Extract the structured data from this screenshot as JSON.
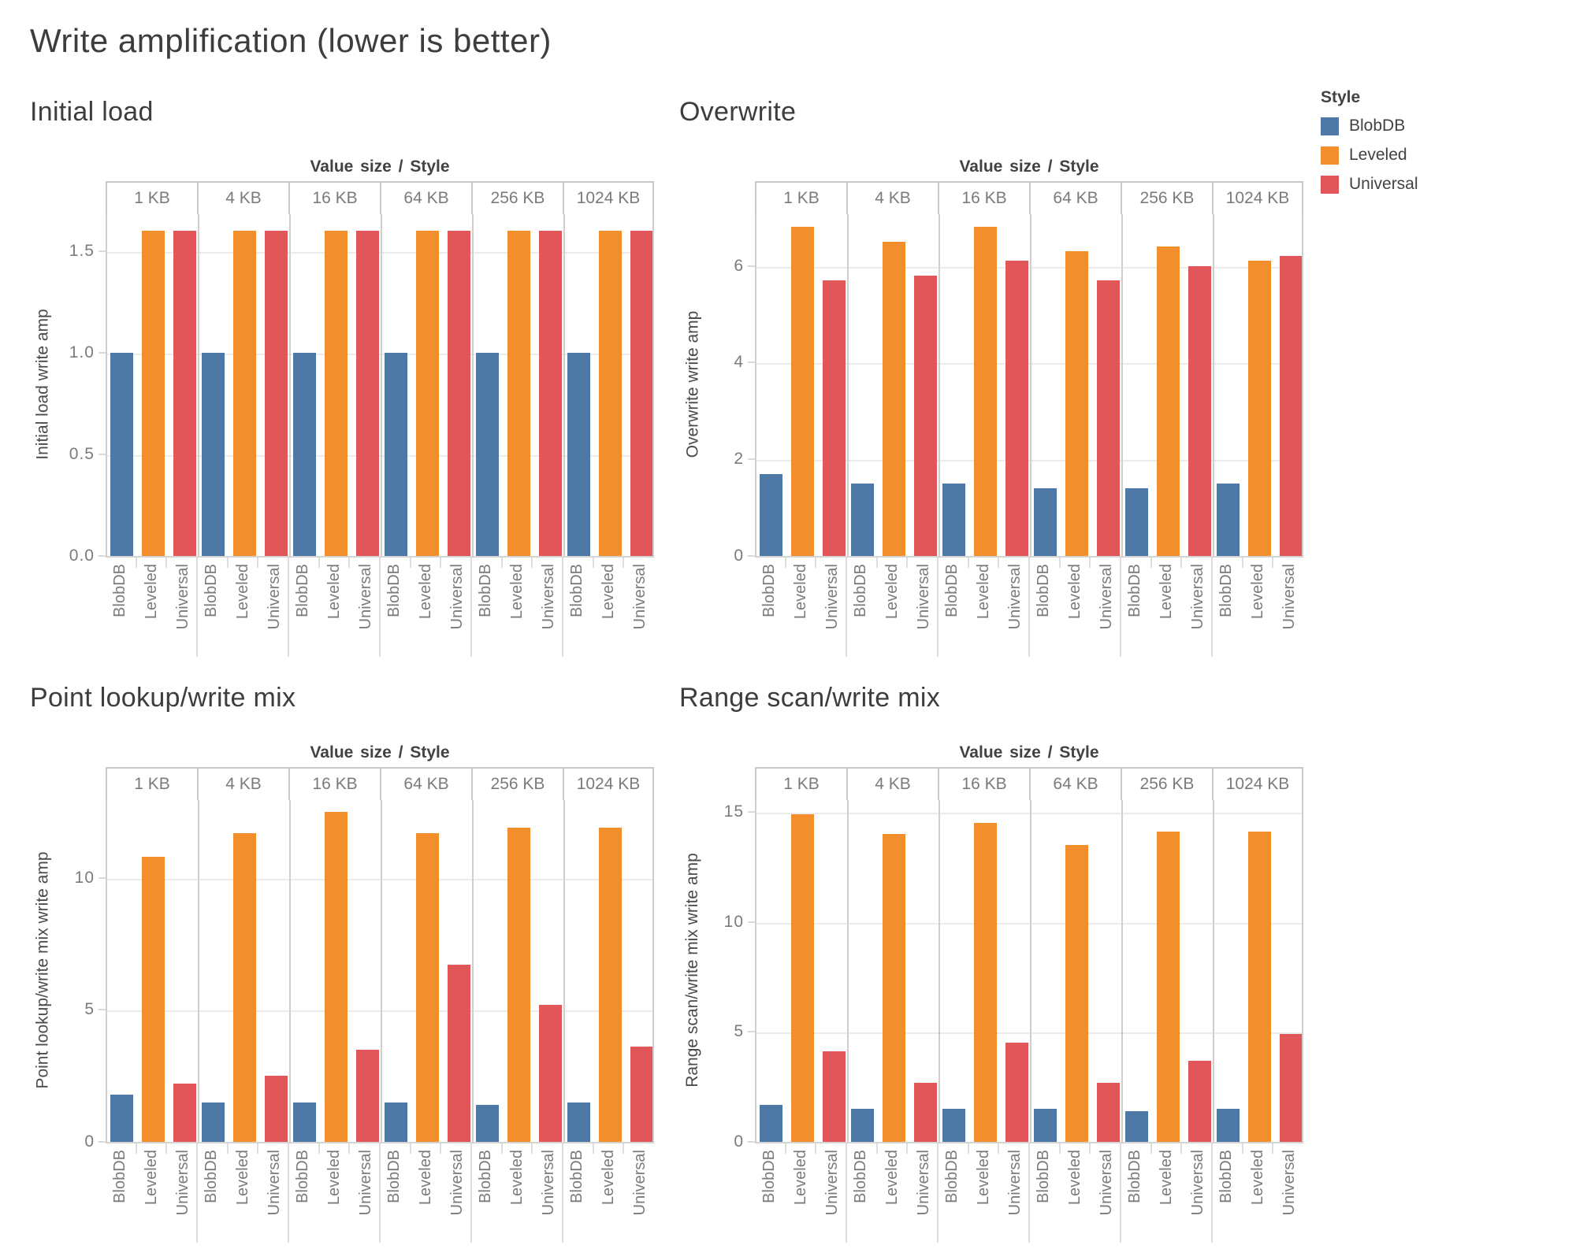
{
  "title": "Write amplification (lower is better)",
  "column_header": "Value size / Style",
  "legend": {
    "title": "Style",
    "items": [
      {
        "label": "BlobDB",
        "color": "#4E79A7"
      },
      {
        "label": "Leveled",
        "color": "#F28E2B"
      },
      {
        "label": "Universal",
        "color": "#E15759"
      }
    ]
  },
  "chart_data": [
    {
      "id": "initial-load",
      "type": "bar",
      "title": "Initial load",
      "ylabel": "Initial load write amp",
      "xlabel": "Value size / Style",
      "categories": [
        "1 KB",
        "4 KB",
        "16 KB",
        "64 KB",
        "256 KB",
        "1024 KB"
      ],
      "series": [
        {
          "name": "BlobDB",
          "color": "#4E79A7",
          "values": [
            1.0,
            1.0,
            1.0,
            1.0,
            1.0,
            1.0
          ]
        },
        {
          "name": "Leveled",
          "color": "#F28E2B",
          "values": [
            1.6,
            1.6,
            1.6,
            1.6,
            1.6,
            1.6
          ]
        },
        {
          "name": "Universal",
          "color": "#E15759",
          "values": [
            1.6,
            1.6,
            1.6,
            1.6,
            1.6,
            1.6
          ]
        }
      ],
      "yticks": [
        "0.0",
        "0.5",
        "1.0",
        "1.5"
      ],
      "ytick_values": [
        0,
        0.5,
        1.0,
        1.5
      ],
      "ylim": [
        0,
        1.69
      ],
      "grid": true,
      "legend_position": "top-right"
    },
    {
      "id": "overwrite",
      "type": "bar",
      "title": "Overwrite",
      "ylabel": "Overwrite write amp",
      "xlabel": "Value size / Style",
      "categories": [
        "1 KB",
        "4 KB",
        "16 KB",
        "64 KB",
        "256 KB",
        "1024 KB"
      ],
      "series": [
        {
          "name": "BlobDB",
          "color": "#4E79A7",
          "values": [
            1.7,
            1.5,
            1.5,
            1.4,
            1.4,
            1.5
          ]
        },
        {
          "name": "Leveled",
          "color": "#F28E2B",
          "values": [
            6.8,
            6.5,
            6.8,
            6.3,
            6.4,
            6.1
          ]
        },
        {
          "name": "Universal",
          "color": "#E15759",
          "values": [
            5.7,
            5.8,
            6.1,
            5.7,
            6.0,
            6.2
          ]
        }
      ],
      "yticks": [
        "0",
        "2",
        "4",
        "6"
      ],
      "ytick_values": [
        0,
        2,
        4,
        6
      ],
      "ylim": [
        0,
        7.1
      ],
      "grid": true,
      "legend_position": "top-right"
    },
    {
      "id": "point-lookup",
      "type": "bar",
      "title": "Point lookup/write mix",
      "ylabel": "Point lookup/write mix write amp",
      "xlabel": "Value size / Style",
      "categories": [
        "1 KB",
        "4 KB",
        "16 KB",
        "64 KB",
        "256 KB",
        "1024 KB"
      ],
      "series": [
        {
          "name": "BlobDB",
          "color": "#4E79A7",
          "values": [
            1.8,
            1.5,
            1.5,
            1.5,
            1.4,
            1.5
          ]
        },
        {
          "name": "Leveled",
          "color": "#F28E2B",
          "values": [
            10.8,
            11.7,
            12.5,
            11.7,
            11.9,
            11.9
          ]
        },
        {
          "name": "Universal",
          "color": "#E15759",
          "values": [
            2.2,
            2.5,
            3.5,
            6.7,
            5.2,
            3.6
          ]
        }
      ],
      "yticks": [
        "0",
        "5",
        "10"
      ],
      "ytick_values": [
        0,
        5,
        10
      ],
      "ylim": [
        0,
        13.0
      ],
      "grid": true,
      "legend_position": "top-right"
    },
    {
      "id": "range-scan",
      "type": "bar",
      "title": "Range scan/write mix",
      "ylabel": "Range scan/write mix write amp",
      "xlabel": "Value size / Style",
      "categories": [
        "1 KB",
        "4 KB",
        "16 KB",
        "64 KB",
        "256 KB",
        "1024 KB"
      ],
      "series": [
        {
          "name": "BlobDB",
          "color": "#4E79A7",
          "values": [
            1.7,
            1.5,
            1.5,
            1.5,
            1.4,
            1.5
          ]
        },
        {
          "name": "Leveled",
          "color": "#F28E2B",
          "values": [
            14.9,
            14.0,
            14.5,
            13.5,
            14.1,
            14.1
          ]
        },
        {
          "name": "Universal",
          "color": "#E15759",
          "values": [
            4.1,
            2.7,
            4.5,
            2.7,
            3.7,
            4.9
          ]
        }
      ],
      "yticks": [
        "0",
        "5",
        "10",
        "15"
      ],
      "ytick_values": [
        0,
        5,
        10,
        15
      ],
      "ylim": [
        0,
        15.6
      ],
      "grid": true,
      "legend_position": "top-right"
    }
  ]
}
